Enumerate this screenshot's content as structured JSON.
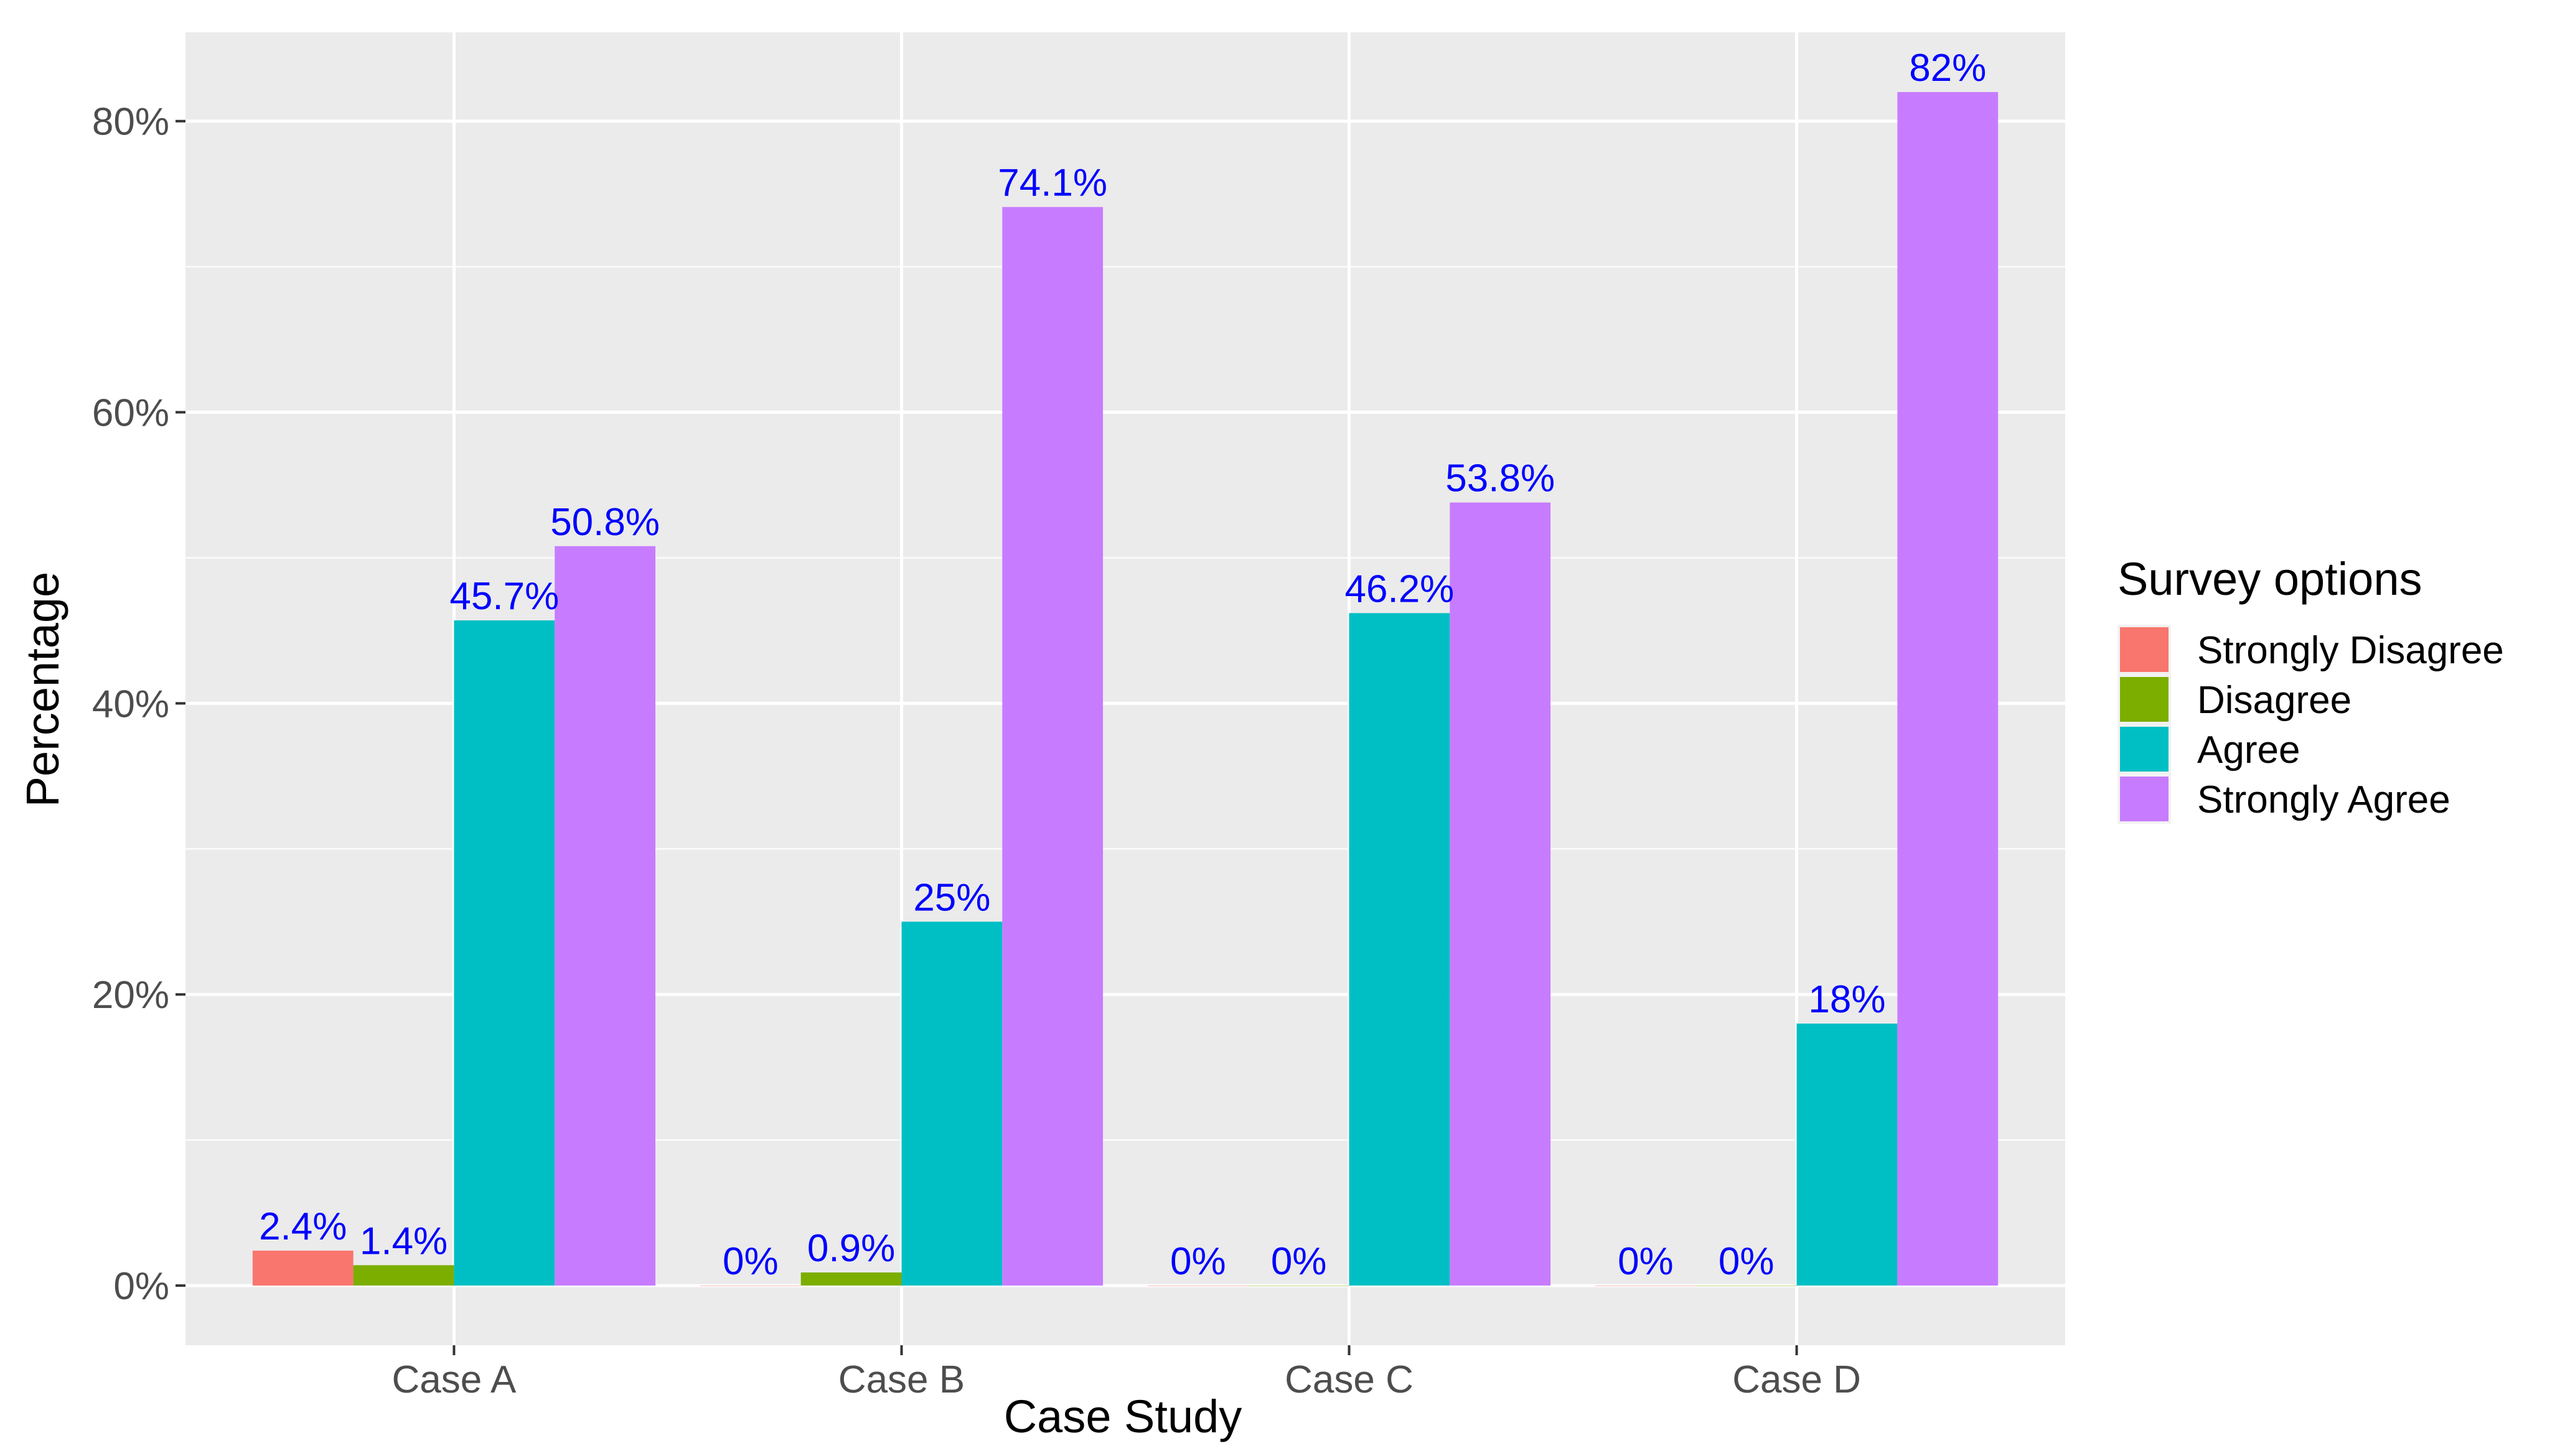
{
  "chart_data": {
    "type": "bar",
    "title": "",
    "xlabel": "Case Study",
    "ylabel": "Percentage",
    "categories": [
      "Case A",
      "Case B",
      "Case C",
      "Case D"
    ],
    "series": [
      {
        "name": "Strongly Disagree",
        "color": "#F8766D",
        "values": [
          2.4,
          0,
          0,
          0
        ],
        "labels": [
          "2.4%",
          "0%",
          "0%",
          "0%"
        ]
      },
      {
        "name": "Disagree",
        "color": "#7CAE00",
        "values": [
          1.4,
          0.9,
          0,
          0
        ],
        "labels": [
          "1.4%",
          "0.9%",
          "0%",
          "0%"
        ]
      },
      {
        "name": "Agree",
        "color": "#00BFC4",
        "values": [
          45.7,
          25,
          46.2,
          18
        ],
        "labels": [
          "45.7%",
          "25%",
          "46.2%",
          "18%"
        ]
      },
      {
        "name": "Strongly Agree",
        "color": "#C77CFF",
        "values": [
          50.8,
          74.1,
          53.8,
          82
        ],
        "labels": [
          "50.8%",
          "74.1%",
          "53.8%",
          "82%"
        ]
      }
    ],
    "ylim": [
      -4.1,
      86.1
    ],
    "yticks": [
      0,
      20,
      40,
      60,
      80
    ],
    "ytick_labels": [
      "0%",
      "20%",
      "40%",
      "60%",
      "80%"
    ],
    "grid": true,
    "legend_title": "Survey options",
    "legend_position": "right",
    "label_color": "#0000FF",
    "panel_color": "#EBEBEB",
    "grid_color": "#FFFFFF"
  }
}
